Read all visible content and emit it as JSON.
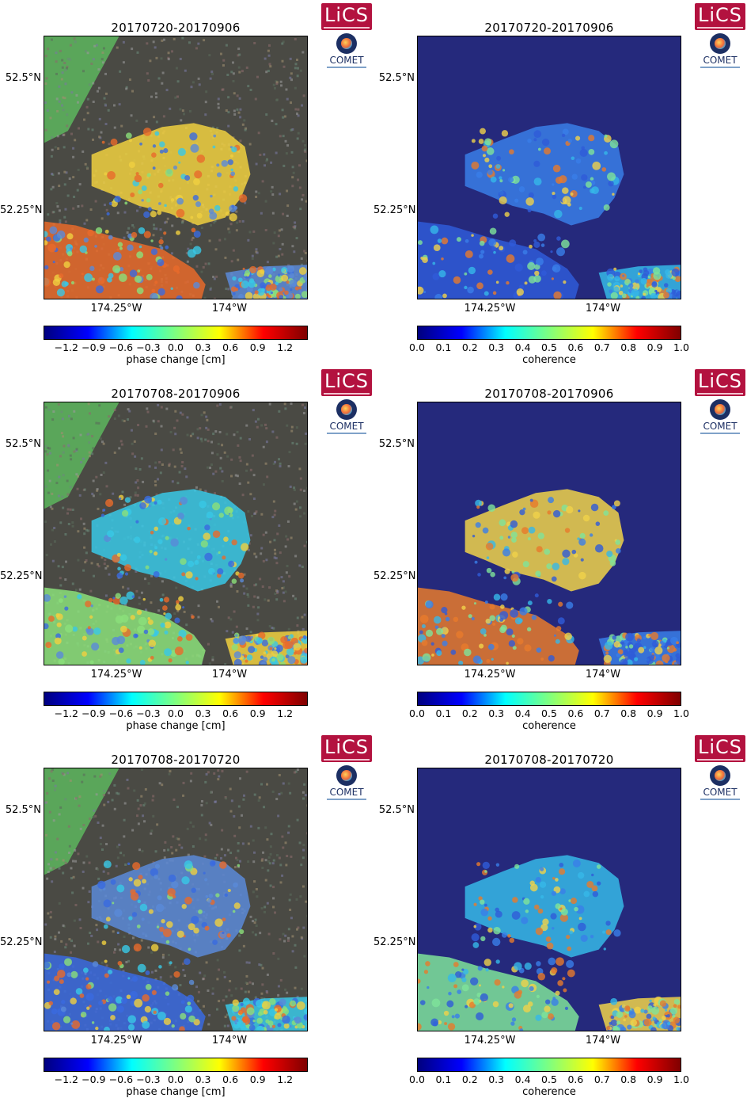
{
  "panels": [
    {
      "title": "20170720-20170906",
      "kind": "phase",
      "seed": 3
    },
    {
      "title": "20170720-20170906",
      "kind": "coherence",
      "seed": 5
    },
    {
      "title": "20170708-20170906",
      "kind": "phase",
      "seed": 7
    },
    {
      "title": "20170708-20170906",
      "kind": "coherence",
      "seed": 9
    },
    {
      "title": "20170708-20170720",
      "kind": "phase",
      "seed": 11
    },
    {
      "title": "20170708-20170720",
      "kind": "coherence",
      "seed": 13
    }
  ],
  "lat_labels": [
    "52.5°N",
    "52.25°N"
  ],
  "lon_labels": [
    "174.25°W",
    "174°W"
  ],
  "phase_colorbar": {
    "ticks": [
      "−1.2",
      "−0.9",
      "−0.6",
      "−0.3",
      "0.0",
      "0.3",
      "0.6",
      "0.9",
      "1.2"
    ],
    "label": "phase change [cm]",
    "range": [
      -1.45,
      1.45
    ],
    "tick_values": [
      -1.2,
      -0.9,
      -0.6,
      -0.3,
      0.0,
      0.3,
      0.6,
      0.9,
      1.2
    ]
  },
  "coherence_colorbar": {
    "ticks": [
      "0.0",
      "0.1",
      "0.2",
      "0.3",
      "0.4",
      "0.5",
      "0.6",
      "0.7",
      "0.8",
      "0.9",
      "1.0"
    ],
    "label": "coherence",
    "range": [
      0,
      1
    ],
    "tick_values": [
      0,
      0.1,
      0.2,
      0.3,
      0.4,
      0.5,
      0.6,
      0.7,
      0.8,
      0.9,
      1.0
    ]
  },
  "logos": {
    "lics": "LiCS",
    "comet": "COMET"
  },
  "colors": {
    "jet": [
      "#00007f",
      "#0000ff",
      "#00ffff",
      "#7fff7f",
      "#ffff00",
      "#ff0000",
      "#7f0000"
    ],
    "coherence_bg": "#25297c",
    "phase_bg": "#4a4a44",
    "land_green": "#5aa65a"
  }
}
